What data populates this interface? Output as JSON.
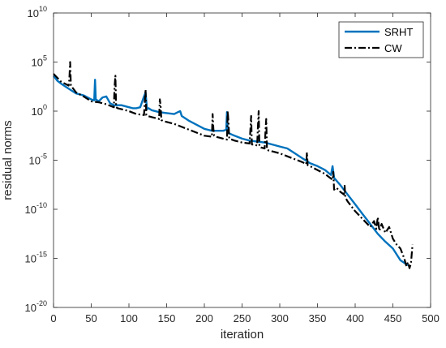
{
  "chart_data": {
    "type": "line",
    "xlabel": "iteration",
    "ylabel": "residual norms",
    "xlim": [
      0,
      500
    ],
    "ylim_exp": [
      -20,
      10
    ],
    "y_scale": "log",
    "x_ticks": [
      0,
      50,
      100,
      150,
      200,
      250,
      300,
      350,
      400,
      450,
      500
    ],
    "y_tick_exponents": [
      10,
      5,
      0,
      -5,
      -10,
      -15,
      -20
    ],
    "y_tick_base": "10",
    "grid": false,
    "legend_position": "top-right",
    "series": [
      {
        "name": "SRHT",
        "color": "#0072BD",
        "style": "solid",
        "x": [
          0,
          5,
          10,
          20,
          30,
          40,
          50,
          54,
          55,
          56,
          60,
          65,
          70,
          75,
          80,
          90,
          100,
          105,
          110,
          115,
          120,
          122,
          124,
          126,
          130,
          140,
          150,
          160,
          165,
          168,
          170,
          180,
          190,
          200,
          210,
          220,
          225,
          229,
          230,
          231,
          240,
          250,
          260,
          270,
          280,
          290,
          300,
          310,
          320,
          330,
          340,
          350,
          360,
          368,
          370,
          372,
          380,
          390,
          400,
          410,
          420,
          430,
          440,
          450,
          460,
          470
        ],
        "y_log10": [
          3.6,
          3.1,
          2.8,
          2.3,
          1.8,
          1.6,
          1.2,
          1.1,
          3.2,
          1.2,
          1.0,
          1.4,
          1.5,
          0.8,
          0.6,
          0.6,
          0.4,
          0.3,
          0.3,
          0.4,
          1.5,
          1.9,
          0.2,
          0.3,
          0.1,
          -0.1,
          -0.2,
          -0.3,
          -0.1,
          0.0,
          -0.5,
          -1.0,
          -1.4,
          -1.8,
          -2.0,
          -2.0,
          -2.0,
          -1.9,
          -0.1,
          -2.2,
          -2.5,
          -2.8,
          -3.0,
          -3.1,
          -3.2,
          -3.4,
          -3.6,
          -3.8,
          -4.3,
          -4.8,
          -5.3,
          -5.6,
          -6.0,
          -6.5,
          -5.6,
          -6.8,
          -7.5,
          -8.5,
          -9.5,
          -10.5,
          -11.5,
          -12.5,
          -13.3,
          -14.0,
          -15.2,
          -15.7
        ]
      },
      {
        "name": "CW",
        "color": "#000000",
        "style": "dashdot",
        "x": [
          0,
          5,
          10,
          20,
          21,
          22,
          23,
          25,
          30,
          40,
          50,
          60,
          70,
          80,
          81,
          82,
          83,
          85,
          90,
          100,
          110,
          120,
          121,
          122,
          123,
          125,
          130,
          140,
          141,
          142,
          143,
          145,
          150,
          160,
          170,
          180,
          190,
          200,
          210,
          211,
          212,
          213,
          215,
          220,
          230,
          231,
          232,
          233,
          240,
          250,
          260,
          261,
          262,
          263,
          265,
          270,
          271,
          272,
          273,
          275,
          280,
          281,
          282,
          283,
          285,
          290,
          300,
          310,
          320,
          330,
          335,
          336,
          337,
          340,
          350,
          360,
          370,
          371,
          372,
          375,
          380,
          385,
          386,
          387,
          390,
          400,
          410,
          420,
          425,
          428,
          430,
          432,
          435,
          440,
          445,
          450,
          455,
          460,
          465,
          468,
          470,
          472,
          474,
          476
        ],
        "y_log10": [
          3.8,
          3.4,
          3.0,
          2.6,
          3.2,
          5.0,
          2.6,
          2.4,
          1.9,
          1.5,
          1.0,
          0.9,
          0.7,
          0.4,
          2.5,
          3.6,
          0.4,
          0.3,
          0.2,
          0.0,
          -0.3,
          -0.4,
          0.9,
          2.2,
          -0.4,
          -0.5,
          -0.6,
          -0.8,
          1.2,
          0.5,
          -0.9,
          -1.0,
          -1.1,
          -1.3,
          -1.6,
          -1.9,
          -2.2,
          -2.5,
          -2.6,
          -0.3,
          -1.9,
          -2.5,
          -2.6,
          -2.7,
          -2.9,
          0.0,
          -1.2,
          -2.8,
          -3.0,
          -3.2,
          -3.3,
          -2.0,
          -0.5,
          -3.4,
          -3.4,
          -3.5,
          -1.7,
          0.0,
          -3.6,
          -3.7,
          -3.8,
          -2.2,
          -0.8,
          -3.9,
          -4.0,
          -4.1,
          -4.3,
          -4.6,
          -4.9,
          -5.2,
          -5.4,
          -4.2,
          -5.5,
          -5.6,
          -6.0,
          -6.4,
          -7.0,
          -6.2,
          -8.0,
          -7.8,
          -8.2,
          -8.5,
          -7.6,
          -8.8,
          -9.2,
          -10.2,
          -11.0,
          -11.8,
          -11.2,
          -12.0,
          -10.8,
          -12.2,
          -11.5,
          -12.4,
          -11.8,
          -13.0,
          -13.6,
          -14.0,
          -15.0,
          -15.8,
          -15.4,
          -16.0,
          -15.5,
          -13.6
        ]
      }
    ]
  }
}
